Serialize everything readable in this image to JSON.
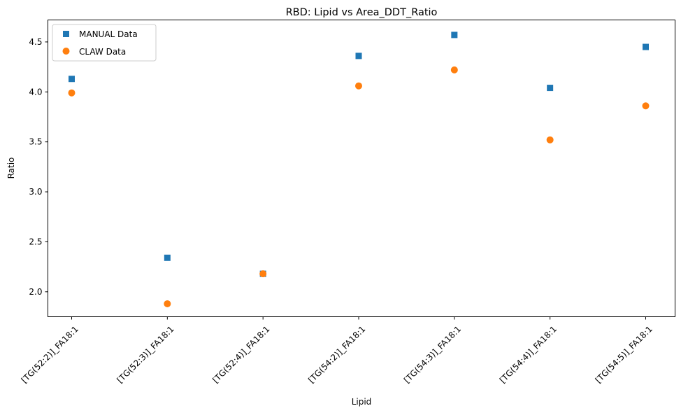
{
  "chart_data": {
    "type": "scatter",
    "title": "RBD: Lipid vs Area_DDT_Ratio",
    "xlabel": "Lipid",
    "ylabel": "Ratio",
    "categories": [
      "[TG(52:2)]_FA18:1",
      "[TG(52:3)]_FA18:1",
      "[TG(52:4)]_FA18:1",
      "[TG(54:2)]_FA18:1",
      "[TG(54:3)]_FA18:1",
      "[TG(54:4)]_FA18:1",
      "[TG(54:5)]_FA18:1"
    ],
    "ylim": [
      1.75,
      4.72
    ],
    "yticks": [
      2.0,
      2.5,
      3.0,
      3.5,
      4.0,
      4.5
    ],
    "ytick_labels": [
      "2.0",
      "2.5",
      "3.0",
      "3.5",
      "4.0",
      "4.5"
    ],
    "grid": false,
    "legend_position": "top-left",
    "series": [
      {
        "name": "MANUAL Data",
        "marker": "square",
        "color": "#1f77b4",
        "values": [
          4.13,
          2.34,
          2.18,
          4.36,
          4.57,
          4.04,
          4.45
        ]
      },
      {
        "name": "CLAW Data",
        "marker": "circle",
        "color": "#ff7f0e",
        "values": [
          3.99,
          1.88,
          2.18,
          4.06,
          4.22,
          3.52,
          3.86
        ]
      }
    ]
  }
}
